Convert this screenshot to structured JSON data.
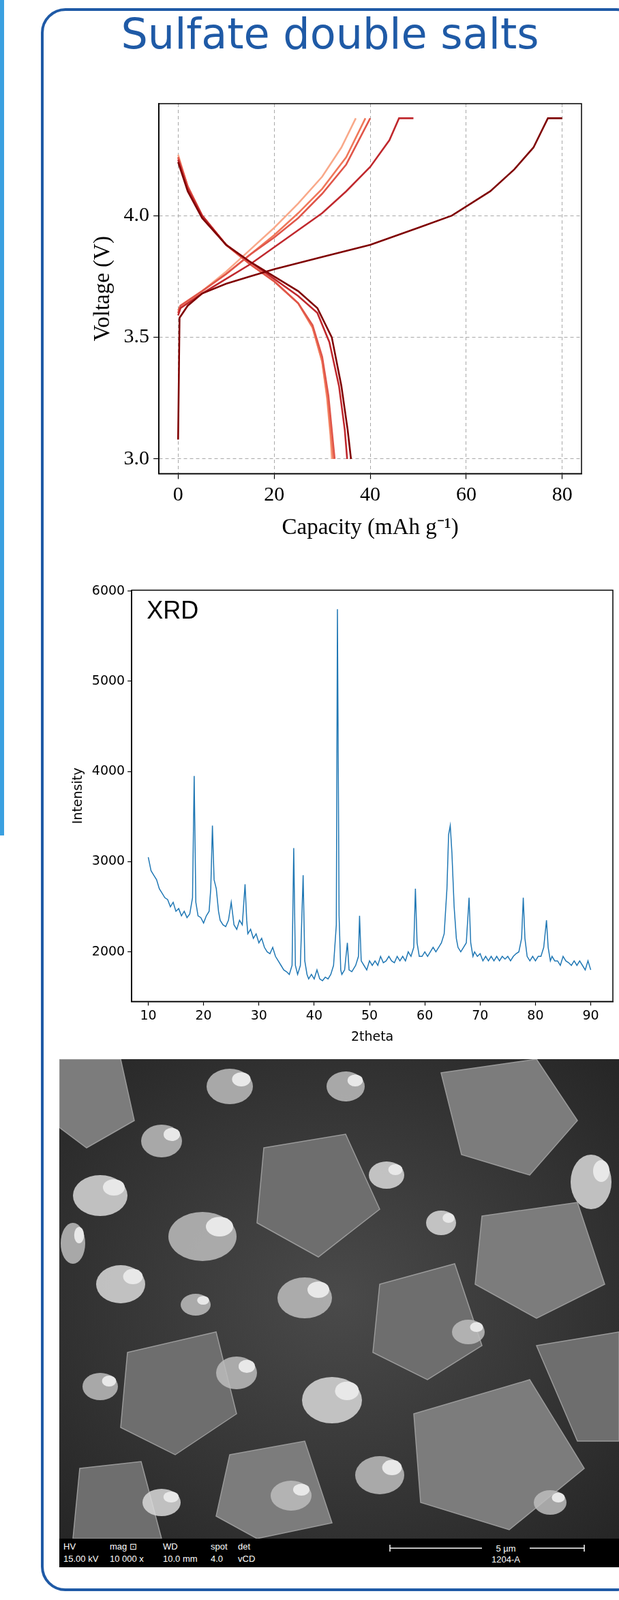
{
  "title": "Sulfate double salts",
  "chart_data": [
    {
      "type": "line",
      "x_label": "Capacity (mAh g⁻¹)",
      "y_label": "Voltage (V)",
      "xlim": [
        -4,
        84
      ],
      "ylim": [
        2.94,
        4.46
      ],
      "xticks": [
        0,
        20,
        40,
        60,
        80
      ],
      "yticks": [
        {
          "value": 3,
          "label": "3.0"
        },
        3.5,
        {
          "value": 4,
          "label": "4.0"
        }
      ],
      "grid": true,
      "series": [
        {
          "color": "#7f0000",
          "x": [
            0,
            0.3,
            2,
            5,
            10,
            15,
            20,
            30,
            40,
            50,
            57,
            65,
            70,
            74,
            77,
            80
          ],
          "values": [
            3.08,
            3.58,
            3.63,
            3.68,
            3.72,
            3.75,
            3.78,
            3.83,
            3.88,
            3.95,
            4.0,
            4.1,
            4.19,
            4.28,
            4.4,
            4.4
          ]
        },
        {
          "color": "#7f0000",
          "x": [
            0,
            2,
            5,
            10,
            15,
            20,
            25,
            29,
            32,
            34,
            35.3,
            36
          ],
          "values": [
            4.22,
            4.1,
            3.99,
            3.88,
            3.81,
            3.75,
            3.69,
            3.62,
            3.5,
            3.3,
            3.12,
            3.0
          ]
        },
        {
          "color": "#c0282d",
          "x": [
            0,
            0.5,
            5,
            10,
            15,
            20,
            25,
            30,
            35,
            40,
            44,
            46,
            49
          ],
          "values": [
            3.59,
            3.62,
            3.68,
            3.74,
            3.8,
            3.87,
            3.94,
            4.01,
            4.1,
            4.2,
            4.31,
            4.4,
            4.4
          ]
        },
        {
          "color": "#c0282d",
          "x": [
            0,
            2,
            5,
            10,
            15,
            20,
            25,
            29,
            31.5,
            33.5,
            34.7,
            35.2
          ],
          "values": [
            4.23,
            4.11,
            4.0,
            3.88,
            3.81,
            3.74,
            3.67,
            3.6,
            3.48,
            3.3,
            3.12,
            3.0
          ]
        },
        {
          "color": "#e0564a",
          "x": [
            0,
            0.5,
            5,
            10,
            15,
            20,
            25,
            30,
            35,
            40
          ],
          "values": [
            3.6,
            3.63,
            3.69,
            3.76,
            3.84,
            3.91,
            3.99,
            4.09,
            4.21,
            4.4
          ]
        },
        {
          "color": "#e0564a",
          "x": [
            0,
            2,
            5,
            10,
            15,
            20,
            25,
            28,
            30,
            31.3,
            32.1,
            32.6
          ],
          "values": [
            4.24,
            4.12,
            4.0,
            3.88,
            3.8,
            3.73,
            3.64,
            3.55,
            3.42,
            3.26,
            3.1,
            3.0
          ]
        },
        {
          "color": "#f0785a",
          "x": [
            0,
            0.5,
            5,
            10,
            15,
            20,
            25,
            30,
            35,
            39
          ],
          "values": [
            3.61,
            3.63,
            3.69,
            3.76,
            3.84,
            3.92,
            4.01,
            4.11,
            4.24,
            4.4
          ]
        },
        {
          "color": "#f0785a",
          "x": [
            0,
            2,
            5,
            10,
            15,
            20,
            25,
            28,
            30,
            31.1,
            31.8,
            32.3
          ],
          "values": [
            4.24,
            4.12,
            4.0,
            3.88,
            3.8,
            3.73,
            3.64,
            3.54,
            3.4,
            3.25,
            3.1,
            3.0
          ]
        },
        {
          "color": "#f9a98a",
          "x": [
            0,
            0.5,
            5,
            10,
            15,
            20,
            25,
            30,
            34,
            37
          ],
          "values": [
            3.6,
            3.62,
            3.69,
            3.77,
            3.86,
            3.95,
            4.05,
            4.16,
            4.28,
            4.4
          ]
        },
        {
          "color": "#f9a98a",
          "x": [
            0,
            2,
            5,
            10,
            15,
            20,
            25,
            28,
            30,
            31,
            31.7,
            32
          ],
          "values": [
            4.25,
            4.12,
            4.0,
            3.88,
            3.8,
            3.73,
            3.64,
            3.54,
            3.4,
            3.25,
            3.1,
            3.0
          ]
        }
      ]
    },
    {
      "type": "line",
      "annotation": "XRD",
      "x_label": "2theta",
      "y_label": "Intensity",
      "xlim": [
        7,
        94
      ],
      "ylim": [
        1450,
        6010
      ],
      "xticks": [
        10,
        20,
        30,
        40,
        50,
        60,
        70,
        80,
        90
      ],
      "yticks": [
        2000,
        3000,
        4000,
        5000,
        6000
      ],
      "grid": false,
      "series": [
        {
          "color": "#1f77b4",
          "x": [
            10,
            10.5,
            11,
            11.5,
            12,
            12.5,
            13,
            13.5,
            14,
            14.5,
            15,
            15.5,
            16,
            16.5,
            17,
            17.5,
            18,
            18.3,
            18.6,
            19,
            19.5,
            20,
            20.5,
            21,
            21.3,
            21.6,
            21.9,
            22.3,
            22.7,
            23,
            23.5,
            24,
            24.5,
            25,
            25.5,
            26,
            26.5,
            27,
            27.5,
            27.8,
            28,
            28.5,
            29,
            29.5,
            30,
            30.5,
            31,
            31.5,
            32,
            32.5,
            33,
            33.5,
            34,
            34.5,
            35,
            35.5,
            36,
            36.3,
            36.6,
            37,
            37.5,
            38,
            38.3,
            38.7,
            39,
            39.5,
            40,
            40.5,
            41,
            41.5,
            42,
            42.5,
            43,
            43.5,
            44,
            44.2,
            44.5,
            44.8,
            45,
            45.5,
            46,
            46.3,
            46.8,
            47,
            47.5,
            48,
            48.2,
            48.5,
            49,
            49.5,
            50,
            50.5,
            51,
            51.5,
            52,
            52.5,
            53,
            53.5,
            54,
            54.5,
            55,
            55.5,
            56,
            56.5,
            57,
            57.5,
            58,
            58.3,
            58.6,
            59,
            59.5,
            60,
            60.5,
            61,
            61.5,
            62,
            62.5,
            63,
            63.5,
            64,
            64.3,
            64.6,
            64.9,
            65.3,
            65.7,
            66,
            66.5,
            67,
            67.5,
            68,
            68.3,
            68.7,
            69,
            69.5,
            70,
            70.5,
            71,
            71.5,
            72,
            72.5,
            73,
            73.5,
            74,
            74.5,
            75,
            75.5,
            76,
            76.5,
            77,
            77.5,
            77.8,
            78.1,
            78.5,
            79,
            79.5,
            80,
            80.5,
            81,
            81.5,
            82,
            82.3,
            82.7,
            83,
            83.5,
            84,
            84.5,
            85,
            85.5,
            86,
            86.5,
            87,
            87.5,
            88,
            88.5,
            89,
            89.5,
            90
          ],
          "values": [
            3050,
            2900,
            2850,
            2800,
            2700,
            2650,
            2600,
            2580,
            2500,
            2550,
            2450,
            2480,
            2400,
            2450,
            2380,
            2420,
            2600,
            3950,
            2550,
            2400,
            2380,
            2320,
            2400,
            2450,
            2700,
            3400,
            2800,
            2700,
            2450,
            2350,
            2300,
            2280,
            2350,
            2550,
            2300,
            2250,
            2350,
            2300,
            2750,
            2350,
            2200,
            2250,
            2150,
            2200,
            2100,
            2150,
            2050,
            2000,
            1980,
            2050,
            1950,
            1900,
            1850,
            1800,
            1780,
            1750,
            1850,
            3150,
            1850,
            1750,
            1850,
            2850,
            1900,
            1750,
            1700,
            1750,
            1700,
            1800,
            1700,
            1680,
            1720,
            1700,
            1750,
            1850,
            2300,
            5800,
            2400,
            1800,
            1750,
            1800,
            2100,
            1800,
            1780,
            1800,
            1850,
            1950,
            2400,
            1900,
            1850,
            1800,
            1900,
            1850,
            1900,
            1850,
            1950,
            1880,
            1900,
            1950,
            1900,
            1880,
            1950,
            1900,
            1950,
            1900,
            2000,
            1950,
            2050,
            2700,
            2100,
            1950,
            1950,
            2000,
            1950,
            2000,
            2050,
            2000,
            2050,
            2100,
            2200,
            2700,
            3300,
            3400,
            3100,
            2500,
            2150,
            2050,
            2000,
            2050,
            2100,
            2600,
            2100,
            1950,
            2000,
            1950,
            1980,
            1900,
            1950,
            1900,
            1950,
            1900,
            1950,
            1900,
            1950,
            1920,
            1950,
            1900,
            1950,
            1980,
            2000,
            2150,
            2600,
            2150,
            1950,
            1900,
            1950,
            1900,
            1950,
            1950,
            2050,
            2350,
            2050,
            1900,
            1950,
            1900,
            1900,
            1850,
            1950,
            1900,
            1880,
            1850,
            1900,
            1850,
            1900,
            1850,
            1800,
            1900,
            1800
          ]
        }
      ]
    }
  ],
  "sem_image": {
    "info_bar": {
      "columns": [
        {
          "head": "HV",
          "value": "15.00 kV"
        },
        {
          "head": "mag ⊡",
          "value": "10 000 x"
        },
        {
          "head": "WD",
          "value": "10.0 mm"
        },
        {
          "head": "spot",
          "value": "4.0"
        },
        {
          "head": "det",
          "value": "vCD"
        }
      ],
      "scale_bar": "5 µm",
      "label": "1204-A"
    }
  }
}
